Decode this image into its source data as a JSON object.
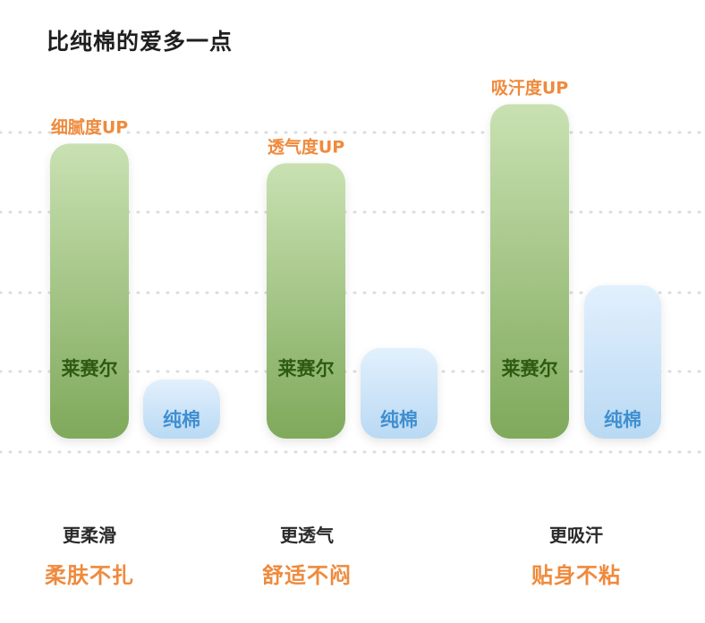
{
  "title": "比纯棉的爱多一点",
  "colors": {
    "lyocell_top": "#c9e1b2",
    "lyocell_bottom": "#7fa95b",
    "cotton_top": "#e2f0fd",
    "cotton_bottom": "#b9d9f3",
    "lyocell_text": "#2e5a12",
    "cotton_text": "#3f8fd1",
    "accent": "#ef8a3c",
    "grid": "#dcdcdc"
  },
  "chart_data": {
    "type": "bar",
    "categories": [
      "更柔滑",
      "更透气",
      "更吸汗"
    ],
    "series": [
      {
        "name": "莱赛尔",
        "values": [
          3.75,
          3.5,
          4.25
        ]
      },
      {
        "name": "纯棉",
        "values": [
          0.75,
          1.15,
          1.95
        ]
      }
    ],
    "annotations": [
      "细腻度UP",
      "透气度UP",
      "吸汗度UP"
    ],
    "ylim": [
      0,
      4.3
    ],
    "grid": true
  },
  "captions": [
    {
      "line1": "更柔滑",
      "line2": "柔肤不扎"
    },
    {
      "line1": "更透气",
      "line2": "舒适不闷"
    },
    {
      "line1": "更吸汗",
      "line2": "贴身不粘"
    }
  ]
}
